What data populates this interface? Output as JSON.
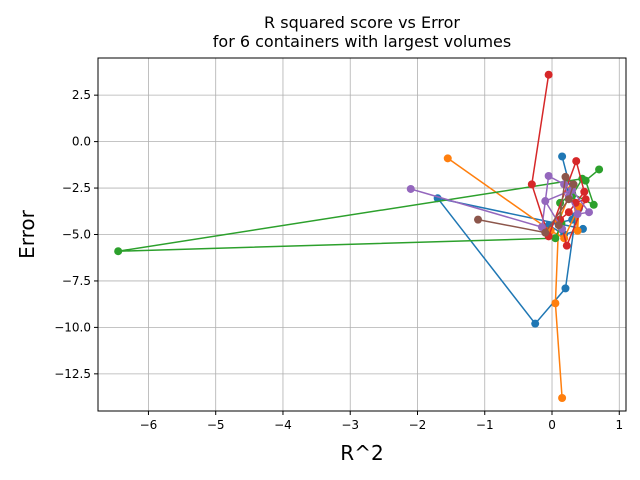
{
  "chart_data": {
    "type": "line",
    "title": "R squared score vs Error\nfor 6 containers with largest volumes",
    "xlabel": "R^2",
    "ylabel": "Error",
    "xlim": [
      -6.75,
      1.1
    ],
    "ylim": [
      -14.5,
      4.5
    ],
    "xticks": [
      -6,
      -5,
      -4,
      -3,
      -2,
      -1,
      0,
      1
    ],
    "yticks": [
      -12.5,
      -10.0,
      -7.5,
      -5.0,
      -2.5,
      0.0,
      2.5
    ],
    "grid": true,
    "series": [
      {
        "color": "#1f77b4",
        "x": [
          0.15,
          0.28,
          0.4,
          0.3,
          -0.05,
          0.18,
          0.46,
          -1.7,
          -0.25,
          0.2,
          0.35
        ],
        "y": [
          -0.8,
          -2.6,
          -3.6,
          -4.2,
          -4.5,
          -5.0,
          -4.7,
          -3.05,
          -9.8,
          -7.9,
          -4.0
        ]
      },
      {
        "color": "#ff7f0e",
        "x": [
          -1.55,
          -0.02,
          0.18,
          0.4,
          0.38,
          0.3,
          0.1,
          0.05,
          0.15
        ],
        "y": [
          -0.9,
          -4.8,
          -5.2,
          -3.5,
          -4.8,
          -2.5,
          -4.3,
          -8.7,
          -13.8
        ]
      },
      {
        "color": "#2ca02c",
        "x": [
          0.7,
          0.5,
          0.62,
          0.3,
          0.12,
          0.14,
          0.05,
          -6.45,
          0.45,
          0.3
        ],
        "y": [
          -1.5,
          -2.1,
          -3.4,
          -2.8,
          -3.3,
          -4.4,
          -5.2,
          -5.9,
          -2.0,
          -2.9
        ]
      },
      {
        "color": "#d62728",
        "x": [
          -0.05,
          -0.3,
          -0.05,
          0.36,
          0.48,
          0.25,
          0.12,
          0.22,
          0.5,
          0.35
        ],
        "y": [
          3.6,
          -2.3,
          -5.1,
          -1.05,
          -2.7,
          -3.8,
          -4.2,
          -5.6,
          -3.1,
          -3.3
        ]
      },
      {
        "color": "#9467bd",
        "x": [
          -2.1,
          -0.15,
          -0.05,
          0.18,
          0.25,
          0.38,
          0.55,
          0.3,
          -0.1,
          0.15
        ],
        "y": [
          -2.55,
          -4.6,
          -1.85,
          -2.3,
          -2.95,
          -3.9,
          -3.8,
          -2.6,
          -3.2,
          -4.7
        ]
      },
      {
        "color": "#8c564b",
        "x": [
          -1.1,
          -0.1,
          0.25,
          0.32,
          0.2,
          0.1
        ],
        "y": [
          -4.2,
          -4.9,
          -3.1,
          -2.3,
          -1.9,
          -4.5
        ]
      }
    ]
  }
}
